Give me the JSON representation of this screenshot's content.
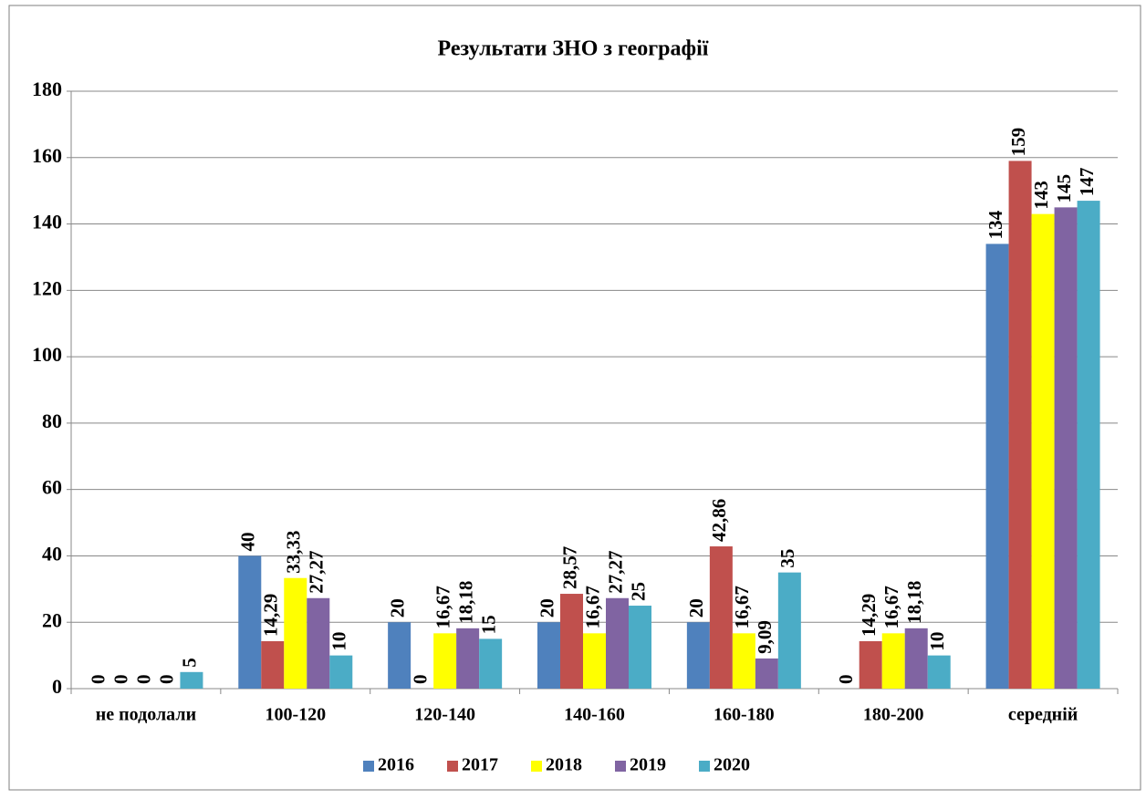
{
  "chart_data": {
    "type": "bar",
    "title": "Результати ЗНО з географії",
    "categories": [
      "не подолали",
      "100-120",
      "120-140",
      "140-160",
      "160-180",
      "180-200",
      "середній"
    ],
    "series": [
      {
        "name": "2016",
        "color": "#4f81bd",
        "values": [
          0,
          40,
          20,
          20,
          20,
          0,
          134
        ],
        "value_labels": [
          "0",
          "40",
          "20",
          "20",
          "20",
          "0",
          "134"
        ]
      },
      {
        "name": "2017",
        "color": "#c0504d",
        "values": [
          0,
          14.29,
          0,
          28.57,
          42.86,
          14.29,
          159
        ],
        "value_labels": [
          "0",
          "14,29",
          "0",
          "28,57",
          "42,86",
          "14,29",
          "159"
        ]
      },
      {
        "name": "2018",
        "color": "#ffff00",
        "values": [
          0,
          33.33,
          16.67,
          16.67,
          16.67,
          16.67,
          143
        ],
        "value_labels": [
          "0",
          "33,33",
          "16,67",
          "16,67",
          "16,67",
          "16,67",
          "143"
        ]
      },
      {
        "name": "2019",
        "color": "#8064a2",
        "values": [
          0,
          27.27,
          18.18,
          27.27,
          9.09,
          18.18,
          145
        ],
        "value_labels": [
          "0",
          "27,27",
          "18,18",
          "27,27",
          "9,09",
          "18,18",
          "145"
        ]
      },
      {
        "name": "2020",
        "color": "#4bacc6",
        "values": [
          5,
          10,
          15,
          25,
          35,
          10,
          147
        ],
        "value_labels": [
          "5",
          "10",
          "15",
          "25",
          "35",
          "10",
          "147"
        ]
      }
    ],
    "ylim": [
      0,
      180
    ],
    "yticks": [
      0,
      20,
      40,
      60,
      80,
      100,
      120,
      140,
      160,
      180
    ],
    "grid": true,
    "legend": "bottom"
  }
}
